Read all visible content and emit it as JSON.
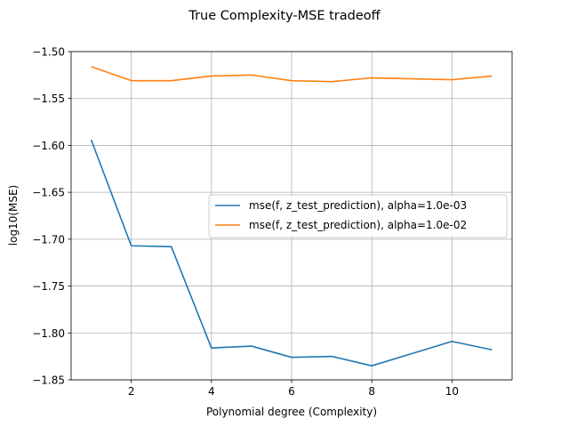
{
  "chart_data": {
    "type": "line",
    "title": "True Complexity-MSE tradeoff",
    "xlabel": "Polynomial degree (Complexity)",
    "ylabel": "log10(MSE)",
    "xlim": [
      0.5,
      11.5
    ],
    "ylim": [
      -1.85,
      -1.5
    ],
    "xticks": [
      2,
      4,
      6,
      8,
      10
    ],
    "xtick_labels": [
      "2",
      "4",
      "6",
      "8",
      "10"
    ],
    "yticks": [
      -1.85,
      -1.8,
      -1.75,
      -1.7,
      -1.65,
      -1.6,
      -1.55,
      -1.5
    ],
    "ytick_labels": [
      "−1.85",
      "−1.80",
      "−1.75",
      "−1.70",
      "−1.65",
      "−1.60",
      "−1.55",
      "−1.50"
    ],
    "grid": true,
    "legend_position": "center-right",
    "x": [
      1,
      2,
      3,
      4,
      5,
      6,
      7,
      8,
      9,
      10,
      11
    ],
    "series": [
      {
        "name": "mse(f, z_test_prediction), alpha=1.0e-03",
        "color": "#1f77b4",
        "values": [
          -1.594,
          -1.707,
          -1.708,
          -1.816,
          -1.814,
          -1.826,
          -1.825,
          -1.835,
          -1.822,
          -1.809,
          -1.818
        ]
      },
      {
        "name": "mse(f, z_test_prediction), alpha=1.0e-02",
        "color": "#ff7f0e",
        "values": [
          -1.516,
          -1.531,
          -1.531,
          -1.526,
          -1.525,
          -1.531,
          -1.532,
          -1.528,
          -1.529,
          -1.53,
          -1.526
        ]
      }
    ]
  }
}
